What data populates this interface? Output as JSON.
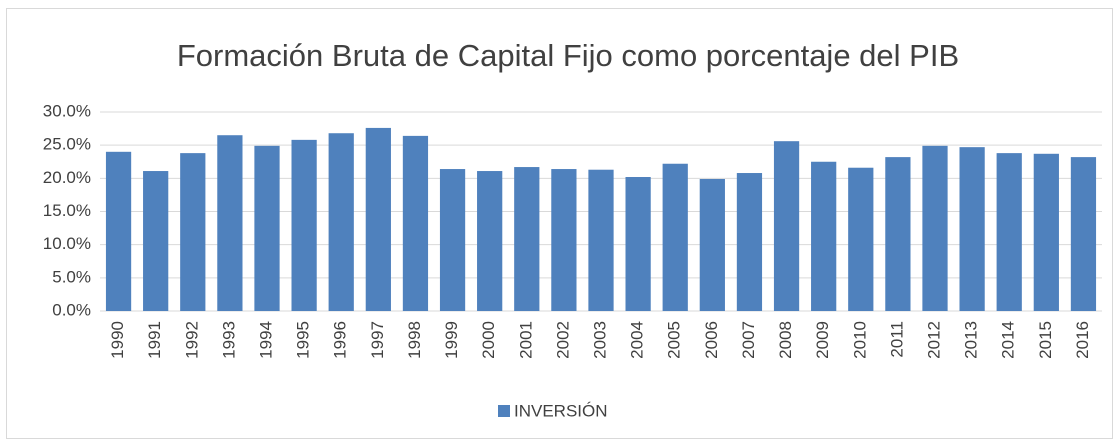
{
  "chart_data": {
    "type": "bar",
    "title": "Formación Bruta de Capital Fijo como porcentaje del PIB",
    "categories": [
      "1990",
      "1991",
      "1992",
      "1993",
      "1994",
      "1995",
      "1996",
      "1997",
      "1998",
      "1999",
      "2000",
      "2001",
      "2002",
      "2003",
      "2004",
      "2005",
      "2006",
      "2007",
      "2008",
      "2009",
      "2010",
      "2011",
      "2012",
      "2013",
      "2014",
      "2015",
      "2016"
    ],
    "series": [
      {
        "name": "INVERSIÓN",
        "color": "#4f81bd",
        "values": [
          24.0,
          21.1,
          23.8,
          26.5,
          24.9,
          25.8,
          26.8,
          27.6,
          26.4,
          21.4,
          21.1,
          21.7,
          21.4,
          21.3,
          20.2,
          22.2,
          19.9,
          20.8,
          25.6,
          22.5,
          21.6,
          23.2,
          24.9,
          24.7,
          23.8,
          23.7,
          23.2
        ]
      }
    ],
    "ylim": [
      0,
      30
    ],
    "yticks": [
      {
        "value": 0,
        "label": "0.0%"
      },
      {
        "value": 5,
        "label": "5.0%"
      },
      {
        "value": 10,
        "label": "10.0%"
      },
      {
        "value": 15,
        "label": "15.0%"
      },
      {
        "value": 20,
        "label": "20.0%"
      },
      {
        "value": 25,
        "label": "25.0%"
      },
      {
        "value": 30,
        "label": "30.0%"
      }
    ],
    "grid": true,
    "legend": "bottom"
  }
}
